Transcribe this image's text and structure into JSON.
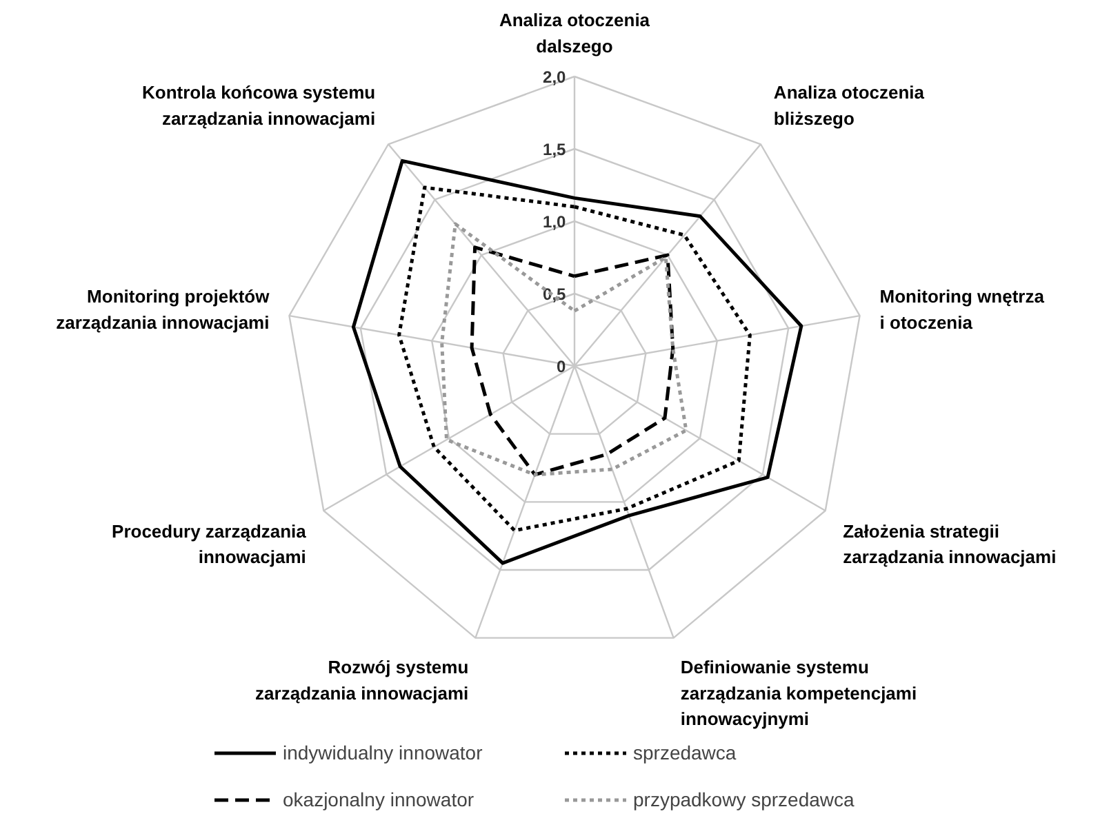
{
  "chart_data": {
    "type": "radar",
    "categories": [
      "Analiza otoczenia\ndalszego",
      "Analiza otoczenia\nbliższego",
      "Monitoring wnętrza\ni otoczenia",
      "Założenia strategii\nzarządzania innowacjami",
      "Definiowanie systemu\nzarządzania kompetencjami\ninnowacyjnymi",
      "Rozwój systemu\nzarządzania innowacjami",
      "Procedury zarządzania\ninnowacjami",
      "Monitoring projektów\nzarządzania innowacjami",
      "Kontrola końcowa systemu\nzarządzania innowacjami"
    ],
    "series": [
      {
        "name": "indywidualny innowator",
        "color": "#000000",
        "line_style": "solid",
        "values": [
          1.16,
          1.35,
          1.59,
          1.54,
          1.1,
          1.45,
          1.39,
          1.55,
          1.85
        ]
      },
      {
        "name": "okazjonalny innowator",
        "color": "#000000",
        "line_style": "dashed",
        "values": [
          0.62,
          1.0,
          0.69,
          0.72,
          0.65,
          0.8,
          0.67,
          0.72,
          1.07
        ]
      },
      {
        "name": "sprzedawca",
        "color": "#000000",
        "line_style": "dotted",
        "values": [
          1.1,
          1.18,
          1.23,
          1.31,
          1.05,
          1.21,
          1.12,
          1.23,
          1.61
        ]
      },
      {
        "name": "przypadkowy sprzedawca",
        "color": "#999999",
        "line_style": "dotted",
        "values": [
          0.38,
          0.98,
          0.69,
          0.89,
          0.76,
          0.8,
          1.02,
          0.93,
          1.28
        ]
      }
    ],
    "ylim": [
      0,
      2
    ],
    "yticks": [
      0,
      {
        "value": 0.5,
        "label": "0,5"
      },
      {
        "value": 1,
        "label": "1,0"
      },
      {
        "value": 1.5,
        "label": "1,5"
      },
      {
        "value": 2,
        "label": "2,0"
      }
    ],
    "grid": true,
    "legend": "bottom"
  }
}
